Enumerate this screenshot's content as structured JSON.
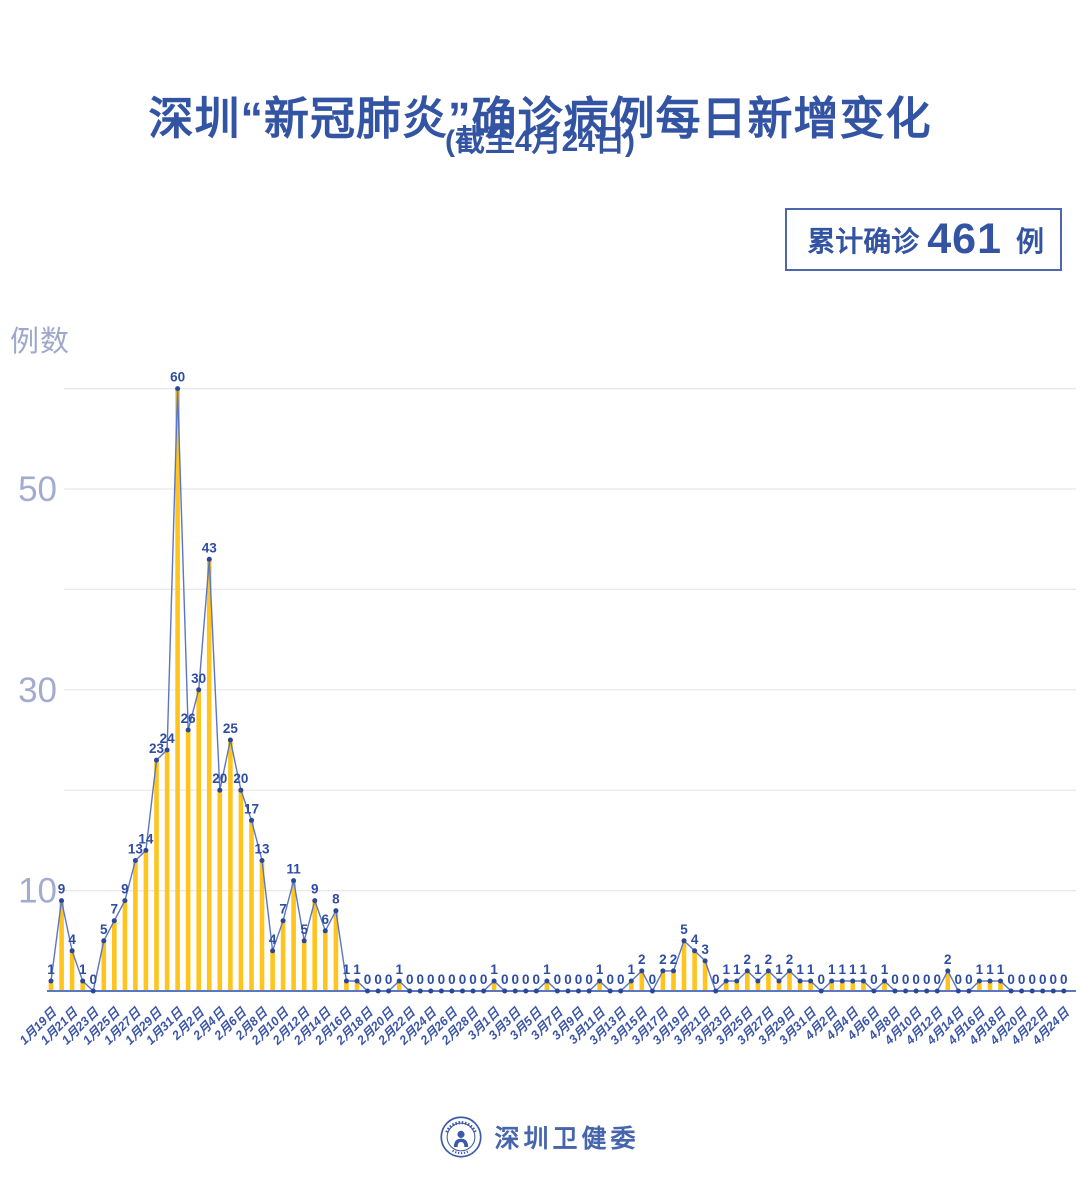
{
  "header": {
    "title": "深圳“新冠肺炎”确诊病例每日新增变化",
    "subtitle": "(截至4月24日)"
  },
  "summary_badge": {
    "label": "累计确诊",
    "value": "461",
    "unit": "例"
  },
  "y_axis_title": "例数",
  "footer": {
    "org_name": "深圳卫健委",
    "logo_icon": "shenzhen-health-commission-emblem"
  },
  "colors": {
    "title_blue": "#3353A3",
    "badge_border": "#4D67AE",
    "bar": "#FFC41E",
    "line": "#5B76C2",
    "point": "#2B4798",
    "data_label": "#2D4CA3",
    "grid": "#E5E6EE",
    "axis_line": "#5B76C2",
    "y_tick_label": "#A3ACCE",
    "x_tick_label": "#3A55A8",
    "footer_text": "#4765AD"
  },
  "chart_data": {
    "type": "bar",
    "line_overlay": true,
    "title": "深圳“新冠肺炎”确诊病例每日新增变化",
    "xlabel": "",
    "ylabel": "例数",
    "ylim": [
      0,
      64
    ],
    "grid": true,
    "legend_position": "none",
    "y_ticks_labeled": [
      10,
      30,
      50
    ],
    "y_gridlines": [
      10,
      20,
      30,
      40,
      50,
      60
    ],
    "x_tick_every": 2,
    "categories": [
      "1月19日",
      "1月20日",
      "1月21日",
      "1月22日",
      "1月23日",
      "1月24日",
      "1月25日",
      "1月26日",
      "1月27日",
      "1月28日",
      "1月29日",
      "1月30日",
      "1月31日",
      "2月1日",
      "2月2日",
      "2月3日",
      "2月4日",
      "2月5日",
      "2月6日",
      "2月7日",
      "2月8日",
      "2月9日",
      "2月10日",
      "2月11日",
      "2月12日",
      "2月13日",
      "2月14日",
      "2月15日",
      "2月16日",
      "2月17日",
      "2月18日",
      "2月19日",
      "2月20日",
      "2月21日",
      "2月22日",
      "2月23日",
      "2月24日",
      "2月25日",
      "2月26日",
      "2月27日",
      "2月28日",
      "2月29日",
      "3月1日",
      "3月2日",
      "3月3日",
      "3月4日",
      "3月5日",
      "3月6日",
      "3月7日",
      "3月8日",
      "3月9日",
      "3月10日",
      "3月11日",
      "3月12日",
      "3月13日",
      "3月14日",
      "3月15日",
      "3月16日",
      "3月17日",
      "3月18日",
      "3月19日",
      "3月20日",
      "3月21日",
      "3月22日",
      "3月23日",
      "3月24日",
      "3月25日",
      "3月26日",
      "3月27日",
      "3月28日",
      "3月29日",
      "3月30日",
      "3月31日",
      "4月1日",
      "4月2日",
      "4月3日",
      "4月4日",
      "4月5日",
      "4月6日",
      "4月7日",
      "4月8日",
      "4月9日",
      "4月10日",
      "4月11日",
      "4月12日",
      "4月13日",
      "4月14日",
      "4月15日",
      "4月16日",
      "4月17日",
      "4月18日",
      "4月19日",
      "4月20日",
      "4月21日",
      "4月22日",
      "4月23日",
      "4月24日"
    ],
    "values": [
      1,
      9,
      4,
      1,
      0,
      5,
      7,
      9,
      13,
      14,
      23,
      24,
      60,
      26,
      30,
      43,
      20,
      25,
      20,
      17,
      13,
      4,
      7,
      11,
      5,
      9,
      6,
      8,
      1,
      1,
      0,
      0,
      0,
      1,
      0,
      0,
      0,
      0,
      0,
      0,
      0,
      0,
      1,
      0,
      0,
      0,
      0,
      1,
      0,
      0,
      0,
      0,
      1,
      0,
      0,
      1,
      2,
      0,
      2,
      2,
      5,
      4,
      3,
      0,
      1,
      1,
      2,
      1,
      2,
      1,
      2,
      1,
      1,
      0,
      1,
      1,
      1,
      1,
      0,
      1,
      0,
      0,
      0,
      0,
      0,
      2,
      0,
      0,
      1,
      1,
      1,
      0,
      0,
      0,
      0,
      0,
      0
    ]
  }
}
